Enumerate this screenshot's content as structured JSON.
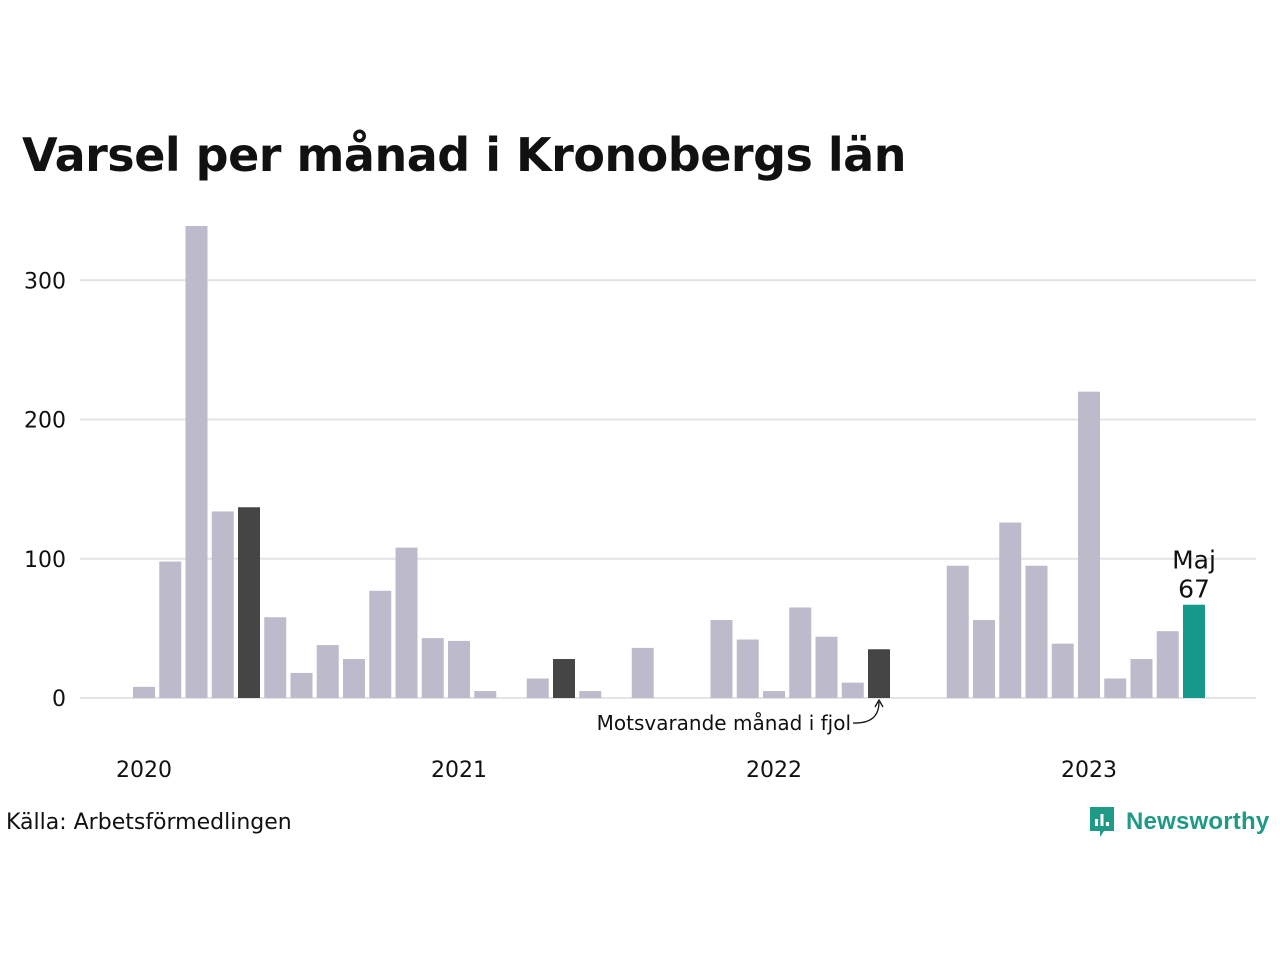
{
  "title": "Varsel per månad i Kronobergs län",
  "source": "Källa: Arbetsförmedlingen",
  "brand": {
    "name": "Newsworthy",
    "color": "#1f9a87",
    "icon": "newsworthy-logo-icon"
  },
  "colors": {
    "bar": "#bdbbcb",
    "comparison": "#454545",
    "highlight": "#16998a",
    "grid": "#e3e3e8"
  },
  "chart_data": {
    "type": "bar",
    "title": "Varsel per månad i Kronobergs län",
    "xlabel": "",
    "ylabel": "",
    "ylim": [
      0,
      340
    ],
    "yticks": [
      0,
      100,
      200,
      300
    ],
    "xticks": [
      "2020",
      "2021",
      "2022",
      "2023"
    ],
    "grid": true,
    "categories": [
      "2020-01",
      "2020-02",
      "2020-03",
      "2020-04",
      "2020-05",
      "2020-06",
      "2020-07",
      "2020-08",
      "2020-09",
      "2020-10",
      "2020-11",
      "2020-12",
      "2021-01",
      "2021-02",
      "2021-03",
      "2021-04",
      "2021-05",
      "2021-06",
      "2021-07",
      "2021-08",
      "2021-09",
      "2021-10",
      "2021-11",
      "2021-12",
      "2022-01",
      "2022-02",
      "2022-03",
      "2022-04",
      "2022-05",
      "2022-06",
      "2022-07",
      "2022-08",
      "2022-09",
      "2022-10",
      "2022-11",
      "2022-12",
      "2023-01",
      "2023-02",
      "2023-03",
      "2023-04",
      "2023-05"
    ],
    "values": [
      8,
      98,
      339,
      134,
      137,
      58,
      18,
      38,
      28,
      77,
      108,
      43,
      41,
      5,
      0,
      14,
      28,
      5,
      0,
      36,
      0,
      0,
      56,
      42,
      5,
      65,
      44,
      11,
      35,
      0,
      0,
      95,
      56,
      126,
      95,
      39,
      220,
      14,
      28,
      48,
      67
    ],
    "comparison_months": [
      "2020-05",
      "2021-05",
      "2022-05"
    ],
    "highlight": {
      "month": "2023-05",
      "label": "Maj",
      "value": "67"
    },
    "annotations": [
      {
        "text": "Motsvarande månad i fjol",
        "target": "2022-05"
      }
    ]
  }
}
